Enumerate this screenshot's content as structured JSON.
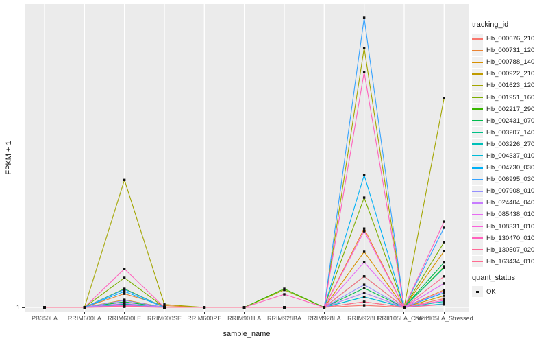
{
  "chart_data": {
    "type": "line",
    "title": "",
    "xlabel": "sample_name",
    "ylabel": "FPKM + 1",
    "y_tick_label": "1",
    "categories": [
      "PB350LA",
      "RRIM600LA",
      "RRIM600LE",
      "RRIM600SE",
      "RRIM600PE",
      "RRIM901LA",
      "RRIM928BA",
      "RRIM928LA",
      "RRIM928LE",
      "RRII105LA_Control",
      "RRII105LA_Stressed"
    ],
    "value_encoding": "relative height above the y=1 baseline, normalized to the tallest peak (Hb_006995_030 at RRIM928LE = 1.0)",
    "layout": {
      "panel_bg": "#EBEBEB",
      "grid_color": "#FFFFFF",
      "marker_color": "#111111",
      "grid": "vertical-majors-only",
      "legend_position": "right"
    },
    "series": [
      {
        "tracking_id": "Hb_000676_210",
        "color": "#F8766D",
        "rel_heights": [
          0,
          0,
          0.012,
          0,
          0,
          0,
          0,
          0,
          0.007,
          0,
          0.03
        ]
      },
      {
        "tracking_id": "Hb_000731_120",
        "color": "#EA8331",
        "rel_heights": [
          0,
          0,
          0.047,
          0.006,
          0,
          0,
          0,
          0,
          0.272,
          0,
          0.06
        ]
      },
      {
        "tracking_id": "Hb_000788_140",
        "color": "#D89000",
        "rel_heights": [
          0,
          0,
          0.026,
          0,
          0,
          0,
          0,
          0,
          0.192,
          0,
          0.194
        ]
      },
      {
        "tracking_id": "Hb_000922_210",
        "color": "#C09B00",
        "rel_heights": [
          0,
          0,
          0.019,
          0,
          0,
          0,
          0,
          0,
          0.019,
          0,
          0.04
        ]
      },
      {
        "tracking_id": "Hb_001623_120",
        "color": "#A3A500",
        "rel_heights": [
          0,
          0,
          0.44,
          0.01,
          0,
          0,
          0.06,
          0,
          0.896,
          0,
          0.723
        ]
      },
      {
        "tracking_id": "Hb_001951_160",
        "color": "#7CAE00",
        "rel_heights": [
          0,
          0,
          0.102,
          0,
          0,
          0,
          0,
          0,
          0.379,
          0,
          0.225
        ]
      },
      {
        "tracking_id": "Hb_002217_290",
        "color": "#39B600",
        "rel_heights": [
          0,
          0,
          0.064,
          0,
          0,
          0,
          0.064,
          0,
          0.107,
          0,
          0.14
        ]
      },
      {
        "tracking_id": "Hb_002431_070",
        "color": "#00BB4E",
        "rel_heights": [
          0,
          0,
          0.019,
          0,
          0,
          0,
          0,
          0,
          0.066,
          0,
          0.155
        ]
      },
      {
        "tracking_id": "Hb_003207_140",
        "color": "#00C087",
        "rel_heights": [
          0,
          0,
          0.012,
          0,
          0,
          0,
          0,
          0,
          0.05,
          0,
          0.137
        ]
      },
      {
        "tracking_id": "Hb_003226_270",
        "color": "#00C0B8",
        "rel_heights": [
          0,
          0,
          0.01,
          0,
          0,
          0,
          0,
          0,
          0.036,
          0,
          0.02
        ]
      },
      {
        "tracking_id": "Hb_004337_010",
        "color": "#00BCD8",
        "rel_heights": [
          0,
          0,
          0.007,
          0,
          0,
          0,
          0,
          0,
          0.036,
          0,
          0.012
        ]
      },
      {
        "tracking_id": "Hb_004730_030",
        "color": "#00B0F6",
        "rel_heights": [
          0,
          0,
          0.055,
          0,
          0,
          0,
          0,
          0,
          0.457,
          0,
          0.05
        ]
      },
      {
        "tracking_id": "Hb_006995_030",
        "color": "#35A2FF",
        "rel_heights": [
          0,
          0,
          0.062,
          0,
          0,
          0,
          0,
          0,
          1.0,
          0,
          0.275
        ]
      },
      {
        "tracking_id": "Hb_007908_010",
        "color": "#9590FF",
        "rel_heights": [
          0,
          0,
          0.024,
          0,
          0,
          0,
          0,
          0,
          0.078,
          0,
          0.083
        ]
      },
      {
        "tracking_id": "Hb_024404_040",
        "color": "#C77CFF",
        "rel_heights": [
          0,
          0,
          0.014,
          0,
          0,
          0,
          0,
          0,
          0.05,
          0,
          0.055
        ]
      },
      {
        "tracking_id": "Hb_085438_010",
        "color": "#E76BF3",
        "rel_heights": [
          0,
          0,
          0.007,
          0,
          0,
          0,
          0,
          0,
          0.156,
          0,
          0.083
        ]
      },
      {
        "tracking_id": "Hb_108331_010",
        "color": "#FA62DB",
        "rel_heights": [
          0,
          0,
          0.005,
          0,
          0,
          0,
          0,
          0,
          0.263,
          0,
          0.024
        ]
      },
      {
        "tracking_id": "Hb_130470_010",
        "color": "#FF62BC",
        "rel_heights": [
          0,
          0,
          0.133,
          0,
          0,
          0,
          0.045,
          0,
          0.813,
          0,
          0.296
        ]
      },
      {
        "tracking_id": "Hb_130507_020",
        "color": "#FF6A98",
        "rel_heights": [
          0,
          0,
          0.005,
          0,
          0,
          0,
          0,
          0,
          0.019,
          0,
          0.01
        ]
      },
      {
        "tracking_id": "Hb_163434_010",
        "color": "#FF6C91",
        "rel_heights": [
          0,
          0,
          0.002,
          0,
          0,
          0,
          0,
          0,
          0.107,
          0,
          0.107
        ]
      }
    ]
  },
  "legend": {
    "tracking_title": "tracking_id",
    "quant_title": "quant_status",
    "quant_ok_label": "OK"
  }
}
